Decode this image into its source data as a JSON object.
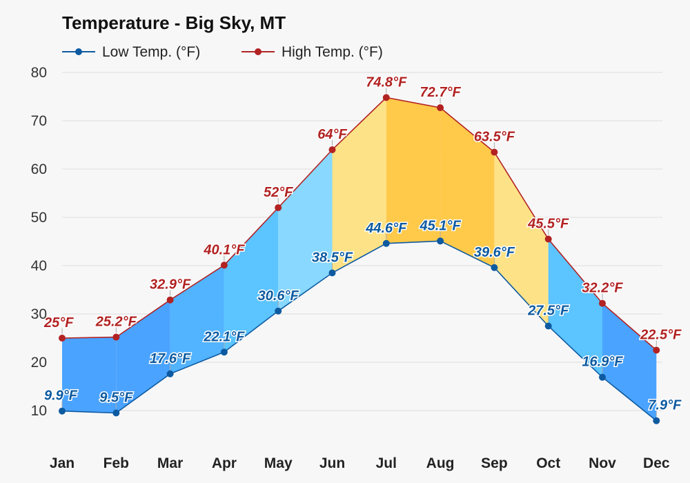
{
  "chart_data": {
    "type": "area",
    "title": "Temperature - Big Sky, MT",
    "categories": [
      "Jan",
      "Feb",
      "Mar",
      "Apr",
      "May",
      "Jun",
      "Jul",
      "Aug",
      "Sep",
      "Oct",
      "Nov",
      "Dec"
    ],
    "series": [
      {
        "name": "Low Temp. (°F)",
        "color": "#0d5aa0",
        "values": [
          9.9,
          9.5,
          17.6,
          22.1,
          30.6,
          38.5,
          44.6,
          45.1,
          39.6,
          27.5,
          16.9,
          7.9
        ],
        "labels": [
          "9.9°F",
          "9.5°F",
          "17.6°F",
          "22.1°F",
          "30.6°F",
          "38.5°F",
          "44.6°F",
          "45.1°F",
          "39.6°F",
          "27.5°F",
          "16.9°F",
          "7.9°F"
        ]
      },
      {
        "name": "High Temp. (°F)",
        "color": "#b22222",
        "values": [
          25,
          25.2,
          32.9,
          40.1,
          52,
          64,
          74.8,
          72.7,
          63.5,
          45.5,
          32.2,
          22.5
        ],
        "labels": [
          "25°F",
          "25.2°F",
          "32.9°F",
          "40.1°F",
          "52°F",
          "64°F",
          "74.8°F",
          "72.7°F",
          "63.5°F",
          "45.5°F",
          "32.2°F",
          "22.5°F"
        ]
      }
    ],
    "band_colors": [
      "#4aa3ff",
      "#4aa3ff",
      "#52b3ff",
      "#5cc4ff",
      "#88d8ff",
      "#fde287",
      "#ffc94a",
      "#ffc94a",
      "#fde287",
      "#5cc4ff",
      "#4aa3ff",
      "#4aa3ff"
    ],
    "ylim": [
      10,
      80
    ],
    "yticks": [
      10,
      20,
      30,
      40,
      50,
      60,
      70,
      80
    ],
    "grid": true,
    "legend": "top-left"
  }
}
